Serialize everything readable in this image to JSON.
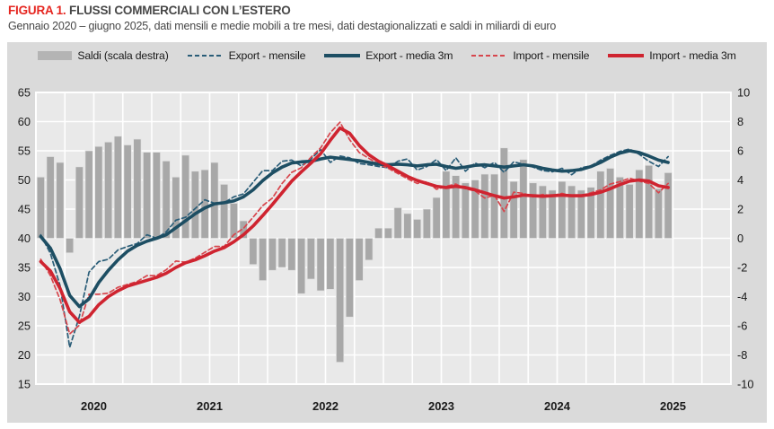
{
  "header": {
    "figura_label": "FIGURA 1.",
    "title": "FLUSSI COMMERCIALI CON L’ESTERO",
    "subtitle": "Gennaio 2020 – giugno 2025, dati mensili e medie mobili a tre mesi, dati destagionalizzati e saldi in miliardi di euro"
  },
  "legend": [
    {
      "label": "Saldi (scala destra)",
      "marker": "swatch",
      "color": "#b4b4b4"
    },
    {
      "label": "Export - mensile",
      "marker": "dashed",
      "color": "#2a5d78"
    },
    {
      "label": "Export - media 3m",
      "marker": "solid",
      "color": "#1d4e63"
    },
    {
      "label": "Import - mensile",
      "marker": "dashed",
      "color": "#d7464d"
    },
    {
      "label": "Import - media 3m",
      "marker": "solid",
      "color": "#cf2430"
    }
  ],
  "colors": {
    "panel_bg": "#dadada",
    "plot_bg": "#e9e9e9",
    "gridline": "#ffffff",
    "bar": "#a8a8a8",
    "axis_text": "#1a1a1a",
    "title_red": "#e52620",
    "title_gray": "#474747"
  },
  "chart_data": {
    "type": "combo",
    "title": "FLUSSI COMMERCIALI CON L’ESTERO",
    "subtitle": "Gennaio 2020 – giugno 2025, dati mensili e medie mobili a tre mesi, dati destagionalizzati e saldi in miliardi di euro",
    "x_axis": {
      "year_labels": [
        "2020",
        "2021",
        "2022",
        "2023",
        "2024",
        "2025"
      ],
      "axis_months_total": 72,
      "data_months_total": 66,
      "minor_grid": "quarterly",
      "note": "axis spans Jan 2020 - Dec 2025; data plotted Jan 2020 - Jun 2025"
    },
    "left_axis": {
      "min": 15,
      "max": 65,
      "step": 5,
      "ticks": [
        65,
        60,
        55,
        50,
        45,
        40,
        35,
        30,
        25,
        20,
        15
      ],
      "unit": "miliardi di euro (flussi)"
    },
    "right_axis": {
      "min": -10,
      "max": 10,
      "step": 2,
      "ticks": [
        10,
        8,
        6,
        4,
        2,
        0,
        -2,
        -4,
        -6,
        -8,
        -10
      ],
      "unit": "miliardi di euro (saldi)"
    },
    "categories": [
      "2020-01",
      "2020-02",
      "2020-03",
      "2020-04",
      "2020-05",
      "2020-06",
      "2020-07",
      "2020-08",
      "2020-09",
      "2020-10",
      "2020-11",
      "2020-12",
      "2021-01",
      "2021-02",
      "2021-03",
      "2021-04",
      "2021-05",
      "2021-06",
      "2021-07",
      "2021-08",
      "2021-09",
      "2021-10",
      "2021-11",
      "2021-12",
      "2022-01",
      "2022-02",
      "2022-03",
      "2022-04",
      "2022-05",
      "2022-06",
      "2022-07",
      "2022-08",
      "2022-09",
      "2022-10",
      "2022-11",
      "2022-12",
      "2023-01",
      "2023-02",
      "2023-03",
      "2023-04",
      "2023-05",
      "2023-06",
      "2023-07",
      "2023-08",
      "2023-09",
      "2023-10",
      "2023-11",
      "2023-12",
      "2024-01",
      "2024-02",
      "2024-03",
      "2024-04",
      "2024-05",
      "2024-06",
      "2024-07",
      "2024-08",
      "2024-09",
      "2024-10",
      "2024-11",
      "2024-12",
      "2025-01",
      "2025-02",
      "2025-03",
      "2025-04",
      "2025-05",
      "2025-06"
    ],
    "bar_series": {
      "name": "Saldi (scala destra)",
      "axis": "right",
      "color": "#a8a8a8",
      "values": [
        4.2,
        5.6,
        5.2,
        -1.0,
        4.9,
        6.0,
        6.3,
        6.6,
        7.0,
        6.4,
        6.8,
        5.9,
        5.9,
        5.3,
        4.2,
        5.7,
        4.6,
        4.7,
        5.2,
        3.7,
        2.4,
        1.2,
        -1.8,
        -2.9,
        -2.2,
        -2.0,
        -2.2,
        -3.8,
        -2.8,
        -3.6,
        -3.5,
        -8.5,
        -5.4,
        -2.9,
        -1.5,
        0.7,
        0.7,
        2.1,
        1.7,
        1.3,
        2.0,
        2.8,
        4.6,
        4.3,
        3.8,
        4.0,
        4.4,
        4.4,
        6.2,
        3.9,
        5.4,
        3.8,
        3.6,
        3.3,
        3.9,
        3.6,
        3.3,
        3.5,
        4.6,
        4.8,
        4.2,
        3.7,
        4.7,
        5.0,
        3.4,
        4.5
      ]
    },
    "line_series": [
      {
        "name": "Export - mensile",
        "axis": "left",
        "style": "dashed",
        "color": "#2a5d78",
        "width": 1.7,
        "values": [
          40.6,
          37.4,
          31.9,
          21.3,
          26.6,
          34.2,
          36.0,
          36.4,
          38.0,
          38.6,
          39.1,
          40.6,
          40.0,
          41.1,
          43.1,
          43.6,
          45.1,
          46.6,
          46.0,
          46.1,
          47.1,
          47.6,
          49.6,
          51.6,
          51.6,
          53.2,
          53.4,
          52.4,
          53.6,
          55.2,
          53.0,
          54.1,
          53.8,
          52.8,
          52.6,
          52.3,
          52.1,
          53.2,
          53.6,
          51.7,
          52.3,
          53.5,
          51.6,
          53.8,
          51.5,
          52.9,
          52.1,
          53.0,
          51.3,
          53.1,
          52.7,
          52.2,
          51.6,
          51.4,
          52.0,
          50.9,
          52.1,
          52.4,
          53.4,
          54.2,
          54.9,
          55.3,
          54.4,
          53.2,
          52.3,
          54.0
        ]
      },
      {
        "name": "Import - mensile",
        "axis": "left",
        "style": "dashed",
        "color": "#d7464d",
        "width": 1.7,
        "values": [
          36.4,
          33.6,
          29.5,
          23.6,
          25.1,
          30.4,
          30.4,
          30.6,
          31.6,
          32.1,
          32.6,
          33.6,
          33.6,
          34.6,
          36.1,
          35.9,
          36.6,
          37.6,
          38.6,
          38.6,
          40.6,
          41.7,
          43.6,
          45.6,
          46.9,
          49.4,
          51.3,
          52.1,
          53.9,
          55.5,
          58.1,
          59.9,
          56.9,
          54.7,
          53.7,
          52.7,
          52.0,
          51.1,
          50.2,
          49.4,
          49.7,
          48.4,
          48.9,
          49.3,
          48.5,
          48.1,
          46.9,
          47.4,
          44.6,
          47.9,
          47.7,
          47.1,
          47.5,
          47.3,
          47.7,
          47.2,
          47.3,
          47.8,
          48.3,
          49.3,
          49.7,
          50.3,
          49.8,
          49.4,
          47.8,
          49.4
        ]
      },
      {
        "name": "Export - media 3m",
        "axis": "left",
        "style": "solid",
        "color": "#1d4e63",
        "width": 3.6,
        "values": [
          40.3,
          38.3,
          34.8,
          30.2,
          28.3,
          29.6,
          32.4,
          34.5,
          36.3,
          37.8,
          38.8,
          39.5,
          40.0,
          40.6,
          41.8,
          43.0,
          44.2,
          45.2,
          45.9,
          46.1,
          46.4,
          47.1,
          48.3,
          49.9,
          51.2,
          52.2,
          52.9,
          53.1,
          53.2,
          53.6,
          53.9,
          53.7,
          53.5,
          53.3,
          53.0,
          52.7,
          52.6,
          52.7,
          52.6,
          52.4,
          52.6,
          52.7,
          52.3,
          52.0,
          52.2,
          52.5,
          52.6,
          52.4,
          52.2,
          52.4,
          52.6,
          52.4,
          52.0,
          51.7,
          51.5,
          51.6,
          51.8,
          52.3,
          53.0,
          53.9,
          54.6,
          55.0,
          54.7,
          54.1,
          53.4,
          53.0
        ]
      },
      {
        "name": "Import - media 3m",
        "axis": "left",
        "style": "solid",
        "color": "#cf2430",
        "width": 3.6,
        "values": [
          36.0,
          34.4,
          31.4,
          27.4,
          25.6,
          26.6,
          28.6,
          30.0,
          31.0,
          31.8,
          32.3,
          32.8,
          33.3,
          34.0,
          35.0,
          35.8,
          36.3,
          37.0,
          37.8,
          38.4,
          39.4,
          40.6,
          42.1,
          43.9,
          45.8,
          47.8,
          49.8,
          51.4,
          52.9,
          54.5,
          56.8,
          58.9,
          58.0,
          55.9,
          54.3,
          53.2,
          52.4,
          51.5,
          50.6,
          49.9,
          49.4,
          48.9,
          48.7,
          48.9,
          48.7,
          48.3,
          47.8,
          47.3,
          46.9,
          47.1,
          47.4,
          47.3,
          47.2,
          47.3,
          47.4,
          47.3,
          47.3,
          47.5,
          47.9,
          48.5,
          49.2,
          49.8,
          50.0,
          49.8,
          49.0,
          48.7
        ]
      }
    ],
    "legend_position": "top"
  }
}
